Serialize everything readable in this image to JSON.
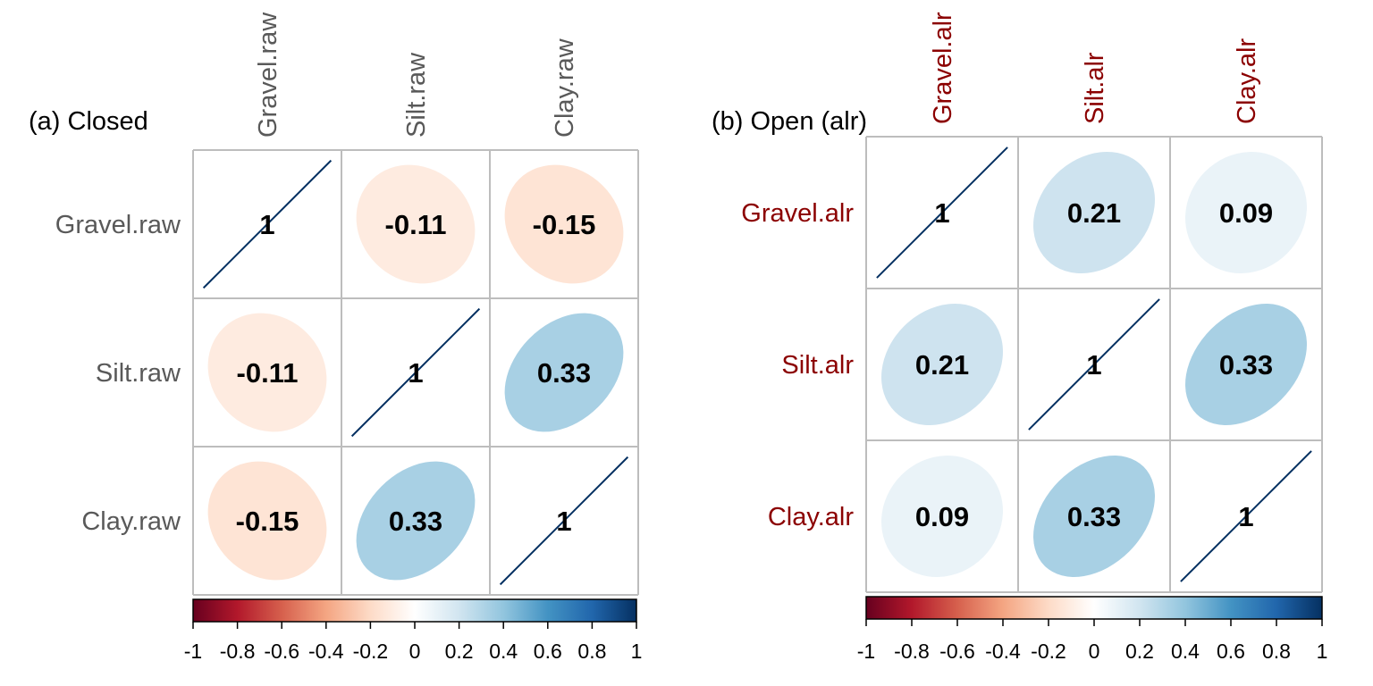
{
  "chart_data": [
    {
      "type": "heatmap",
      "subtype": "corrplot-ellipse",
      "title": "(a) Closed",
      "variables": [
        "Gravel.raw",
        "Silt.raw",
        "Clay.raw"
      ],
      "label_color": "#595959",
      "matrix": [
        [
          1,
          -0.11,
          -0.15
        ],
        [
          -0.11,
          1,
          0.33
        ],
        [
          -0.15,
          0.33,
          1
        ]
      ],
      "cell_labels": [
        [
          "1",
          "-0.11",
          "-0.15"
        ],
        [
          "-0.11",
          "1",
          "0.33"
        ],
        [
          "-0.15",
          "0.33",
          "1"
        ]
      ],
      "colorbar": {
        "range": [
          -1,
          1
        ],
        "ticks": [
          "-1",
          "-0.8",
          "-0.6",
          "-0.4",
          "-0.2",
          "0",
          "0.2",
          "0.4",
          "0.6",
          "0.8",
          "1"
        ]
      }
    },
    {
      "type": "heatmap",
      "subtype": "corrplot-ellipse",
      "title": "(b) Open (alr)",
      "variables": [
        "Gravel.alr",
        "Silt.alr",
        "Clay.alr"
      ],
      "label_color": "#8b0000",
      "matrix": [
        [
          1,
          0.21,
          0.09
        ],
        [
          0.21,
          1,
          0.33
        ],
        [
          0.09,
          0.33,
          1
        ]
      ],
      "cell_labels": [
        [
          "1",
          "0.21",
          "0.09"
        ],
        [
          "0.21",
          "1",
          "0.33"
        ],
        [
          "0.09",
          "0.33",
          "1"
        ]
      ],
      "colorbar": {
        "range": [
          -1,
          1
        ],
        "ticks": [
          "-1",
          "-0.8",
          "-0.6",
          "-0.4",
          "-0.2",
          "0",
          "0.2",
          "0.4",
          "0.6",
          "0.8",
          "1"
        ]
      }
    }
  ],
  "palette": [
    "#67001F",
    "#B2182B",
    "#D6604D",
    "#F4A582",
    "#FDDBC7",
    "#FFFFFF",
    "#D1E5F0",
    "#92C5DE",
    "#4393C3",
    "#2166AC",
    "#053061"
  ]
}
